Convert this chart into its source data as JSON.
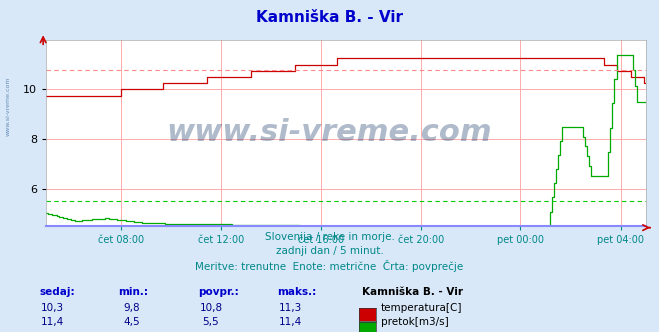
{
  "title": "Kamniška B. - Vir",
  "title_color": "#0000cc",
  "bg_color": "#d8e8f8",
  "plot_bg_color": "#ffffff",
  "grid_color": "#ffaaaa",
  "x_axis_color": "#8888ff",
  "x_label_color": "#008888",
  "temp_color": "#cc0000",
  "flow_color": "#00aa00",
  "temp_avg_color": "#ff8888",
  "flow_avg_color": "#00cc00",
  "watermark_text": "www.si-vreme.com",
  "watermark_color": "#1a3a6a",
  "footer_line1": "Slovenija / reke in morje.",
  "footer_line2": "zadnji dan / 5 minut.",
  "footer_line3": "Meritve: trenutne  Enote: metrične  Črta: povprečje",
  "footer_color": "#008888",
  "xlabels": [
    "čet 08:00",
    "čet 12:00",
    "čet 16:00",
    "čet 20:00",
    "pet 00:00",
    "pet 04:00"
  ],
  "xlabels_pos": [
    0.125,
    0.291,
    0.458,
    0.625,
    0.791,
    0.958
  ],
  "ylim": [
    4.5,
    12.0
  ],
  "yticks": [
    6,
    8,
    10
  ],
  "temp_avg": 10.8,
  "flow_avg": 5.5,
  "legend_title": "Kamniška B. - Vir",
  "legend_items": [
    {
      "label": "temperatura[C]",
      "color": "#cc0000"
    },
    {
      "label": "pretok[m3/s]",
      "color": "#00aa00"
    }
  ],
  "table_headers": [
    "sedaj:",
    "min.:",
    "povpr.:",
    "maks.:"
  ],
  "table_data": [
    [
      "10,3",
      "9,8",
      "10,8",
      "11,3"
    ],
    [
      "11,4",
      "4,5",
      "5,5",
      "11,4"
    ]
  ]
}
